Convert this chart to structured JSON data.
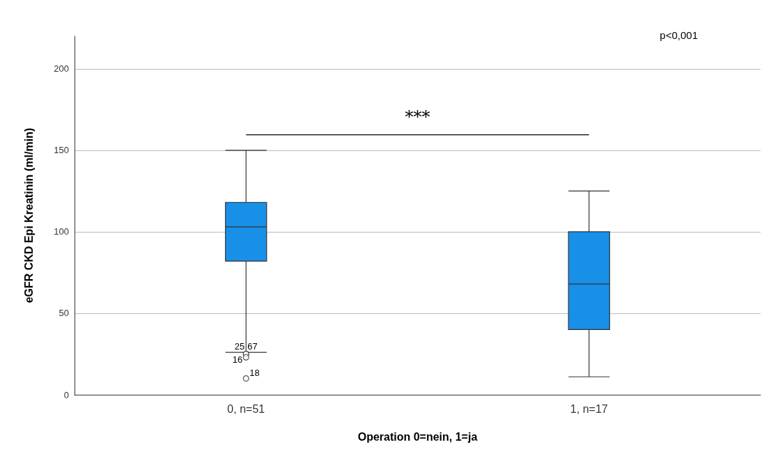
{
  "chart_data": {
    "type": "box",
    "xlabel": "Operation 0=nein, 1=ja",
    "ylabel": "eGFR CKD Epi Kreatinin (ml/min)",
    "categories": [
      "0, n=51",
      "1, n=17"
    ],
    "boxes": [
      {
        "low": 26,
        "q1": 82,
        "median": 103,
        "q3": 118,
        "high": 150,
        "outliers": [
          25,
          25,
          23,
          10
        ]
      },
      {
        "low": 11,
        "q1": 40,
        "median": 68,
        "q3": 100,
        "high": 125
      }
    ],
    "color": "#1890e8",
    "ylim": [
      0,
      220
    ],
    "yticks": [
      0,
      50,
      100,
      150,
      200
    ],
    "grid": "y",
    "annotations": [
      "p<0,001",
      "***",
      "25",
      "67",
      "16",
      "18"
    ]
  }
}
